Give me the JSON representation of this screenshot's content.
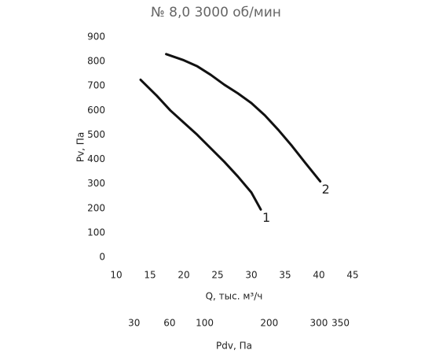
{
  "chart_data": {
    "type": "line",
    "title": "№ 8,0 3000 об/мин",
    "y_label": "Pv, Па",
    "x_label": "Q, тыс. м³/ч",
    "x2_label": "Pdv, Па",
    "xlim": [
      10,
      45
    ],
    "xticks": [
      10,
      15,
      20,
      25,
      30,
      35,
      40,
      45
    ],
    "ylim": [
      0,
      900
    ],
    "yticks": [
      0,
      100,
      200,
      300,
      400,
      500,
      600,
      700,
      800,
      900
    ],
    "x2lim": [
      18.75,
      379.69
    ],
    "x2scale": "sqrt",
    "x2ticks": [
      30,
      60,
      100,
      200,
      300,
      350
    ],
    "grid": false,
    "series": [
      {
        "name": "1",
        "color": "#111111",
        "x": [
          13.6,
          16,
          18,
          20,
          22,
          24,
          26,
          28,
          30,
          31.4
        ],
        "values": [
          725,
          660,
          600,
          550,
          500,
          445,
          390,
          330,
          265,
          195
        ]
      },
      {
        "name": "2",
        "color": "#111111",
        "x": [
          17.4,
          20,
          22,
          24,
          26,
          28,
          30,
          32,
          34,
          36,
          38,
          40.2
        ],
        "values": [
          830,
          805,
          780,
          745,
          705,
          670,
          630,
          580,
          520,
          455,
          385,
          310
        ]
      }
    ]
  }
}
